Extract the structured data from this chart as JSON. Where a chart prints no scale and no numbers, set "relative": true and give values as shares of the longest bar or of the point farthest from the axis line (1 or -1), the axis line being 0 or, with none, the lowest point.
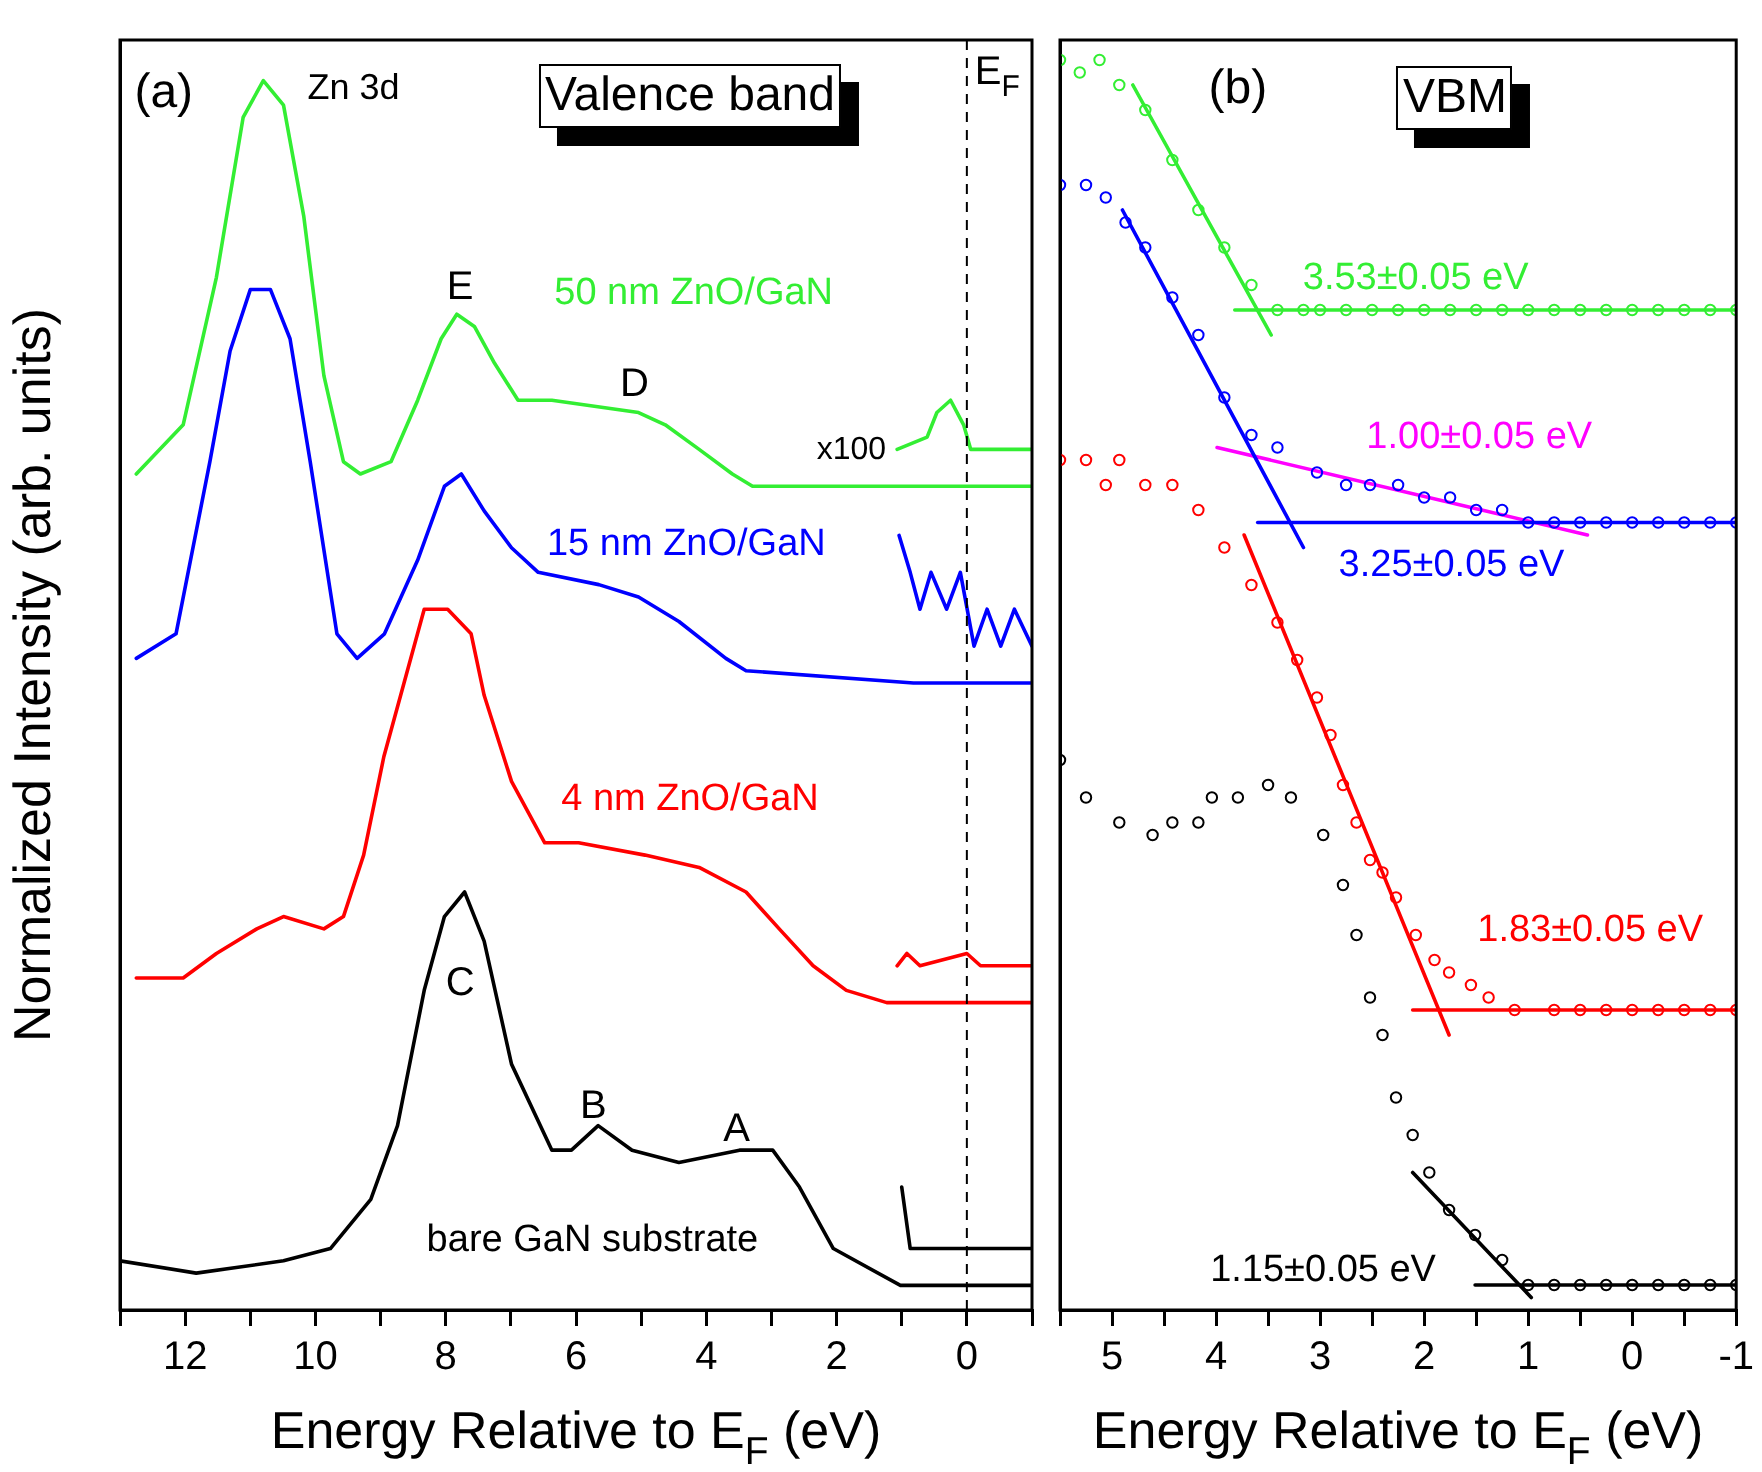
{
  "chart_data": [
    {
      "type": "line",
      "relative": true,
      "xlabel": "Energy Relative to E$_{F}$ (eV)",
      "ylabel": "Normalized Intensity (arb. units)",
      "xlim": [
        13,
        -1
      ],
      "xticks": [
        {
          "value": 13,
          "label": null
        },
        12,
        {
          "value": 11,
          "label": null
        },
        10,
        {
          "value": 9,
          "label": null
        },
        8,
        {
          "value": 7,
          "label": null
        },
        6,
        {
          "value": 5,
          "label": null
        },
        4,
        {
          "value": 3,
          "label": null
        },
        2,
        {
          "value": 1,
          "label": null
        },
        0,
        {
          "value": -1,
          "label": null
        }
      ],
      "ref_lines": [
        {
          "axis": "x",
          "value": 0,
          "label": "E$_{F}$",
          "line_style": "dashed"
        }
      ],
      "annotations": [
        "(a)",
        "Valence band",
        "Zn 3d",
        "E",
        "D",
        "C",
        "B",
        "A",
        "x100"
      ],
      "series": [
        {
          "name": "50 nm ZnO/GaN",
          "color": "#33ee33",
          "x": [
            12.75,
            12.03,
            11.52,
            11.11,
            10.8,
            10.49,
            10.18,
            9.87,
            9.57,
            9.31,
            8.84,
            8.43,
            8.07,
            7.83,
            7.56,
            7.25,
            6.89,
            6.37,
            5.04,
            4.63,
            4.11,
            3.6,
            3.29,
            -1
          ],
          "values": [
            0.68,
            0.72,
            0.84,
            0.97,
            1,
            0.98,
            0.89,
            0.76,
            0.69,
            0.68,
            0.69,
            0.74,
            0.79,
            0.81,
            0.8,
            0.77,
            0.74,
            0.74,
            0.73,
            0.72,
            0.7,
            0.68,
            0.67,
            0.67
          ]
        },
        {
          "color": "#33ee33",
          "x": [
            1.07,
            0.61,
            0.46,
            0.25,
            0.05,
            -0.06,
            -0.42,
            -1
          ],
          "values": [
            0.7,
            0.71,
            0.73,
            0.74,
            0.72,
            0.7,
            0.7,
            0.7
          ]
        },
        {
          "name": "15 nm ZnO/GaN",
          "color": "#0000ff",
          "x": [
            12.75,
            12.14,
            11.62,
            11.31,
            11,
            10.69,
            10.39,
            10.08,
            9.67,
            9.36,
            8.94,
            8.43,
            8.02,
            7.76,
            7.41,
            6.99,
            6.58,
            5.65,
            5.04,
            4.42,
            3.7,
            3.39,
            0.82,
            -1
          ],
          "values": [
            0.53,
            0.55,
            0.69,
            0.78,
            0.83,
            0.83,
            0.79,
            0.69,
            0.55,
            0.53,
            0.55,
            0.61,
            0.67,
            0.68,
            0.65,
            0.62,
            0.6,
            0.59,
            0.58,
            0.56,
            0.53,
            0.52,
            0.51,
            0.51
          ]
        },
        {
          "color": "#0000ff",
          "x": [
            1.04,
            0.87,
            0.72,
            0.55,
            0.31,
            0.1,
            -0.11,
            -0.31,
            -0.52,
            -0.73,
            -1
          ],
          "values": [
            0.63,
            0.6,
            0.57,
            0.6,
            0.57,
            0.6,
            0.54,
            0.57,
            0.54,
            0.57,
            0.54
          ]
        },
        {
          "name": "4 nm ZnO/GaN",
          "color": "#ff0000",
          "x": [
            12.75,
            12.03,
            11.52,
            10.9,
            10.49,
            9.87,
            9.57,
            9.26,
            8.95,
            8.64,
            8.33,
            7.97,
            7.61,
            7.41,
            6.99,
            6.48,
            5.96,
            4.94,
            4.11,
            3.39,
            2.88,
            2.36,
            1.85,
            1.23,
            -1
          ],
          "values": [
            0.27,
            0.27,
            0.29,
            0.31,
            0.32,
            0.31,
            0.32,
            0.37,
            0.45,
            0.51,
            0.57,
            0.57,
            0.55,
            0.5,
            0.43,
            0.38,
            0.38,
            0.37,
            0.36,
            0.34,
            0.31,
            0.28,
            0.26,
            0.25,
            0.25
          ]
        },
        {
          "color": "#ff0000",
          "x": [
            1.07,
            0.92,
            0.72,
            0,
            -0.21,
            -0.62,
            -1
          ],
          "values": [
            0.28,
            0.29,
            0.28,
            0.29,
            0.28,
            0.28,
            0.28
          ]
        },
        {
          "name": "bare GaN substrate",
          "color": "#000000",
          "x": [
            13,
            11.83,
            10.49,
            9.77,
            9.15,
            8.74,
            8.33,
            8.02,
            7.71,
            7.41,
            6.99,
            6.37,
            6.07,
            5.66,
            5.14,
            4.42,
            3.49,
            2.98,
            2.57,
            2.05,
            1.02,
            -1
          ],
          "values": [
            0.04,
            0.03,
            0.04,
            0.05,
            0.09,
            0.15,
            0.26,
            0.32,
            0.34,
            0.3,
            0.2,
            0.13,
            0.13,
            0.15,
            0.13,
            0.12,
            0.13,
            0.13,
            0.1,
            0.05,
            0.02,
            0.02
          ]
        },
        {
          "color": "#000000",
          "x": [
            1,
            0.87,
            0.72,
            0,
            -1
          ],
          "values": [
            0.1,
            0.05,
            0.05,
            0.05,
            0.05
          ]
        }
      ]
    },
    {
      "type": "scatter",
      "relative": true,
      "xlabel": "Energy Relative to E$_{F}$ (eV)",
      "xlim": [
        5.5,
        -1
      ],
      "xticks": [
        {
          "value": 5.5,
          "label": null
        },
        5,
        {
          "value": 4.5,
          "label": null
        },
        4,
        {
          "value": 3.5,
          "label": null
        },
        3,
        {
          "value": 2.5,
          "label": null
        },
        2,
        {
          "value": 1.5,
          "label": null
        },
        1,
        {
          "value": 0.5,
          "label": null
        },
        0,
        {
          "value": -0.5,
          "label": null
        },
        -1
      ],
      "annotations": [
        "(b)",
        "VBM"
      ],
      "series": [
        {
          "marker": "circle",
          "color": "#33ee33",
          "x": [
            5.5,
            5.31,
            5.12,
            4.93,
            4.68,
            4.42,
            4.17,
            3.92,
            3.66,
            3.41,
            3.16,
            3,
            2.75,
            2.5,
            2.25,
            2,
            1.75,
            1.5,
            1.25,
            1,
            0.75,
            0.5,
            0.25,
            0,
            -0.25,
            -0.5,
            -0.75,
            -1
          ],
          "values": [
            1,
            0.99,
            1,
            0.98,
            0.96,
            0.92,
            0.88,
            0.85,
            0.82,
            0.8,
            0.8,
            0.8,
            0.8,
            0.8,
            0.8,
            0.8,
            0.8,
            0.8,
            0.8,
            0.8,
            0.8,
            0.8,
            0.8,
            0.8,
            0.8,
            0.8,
            0.8,
            0.8
          ]
        },
        {
          "type": "line",
          "color": "#33ee33",
          "x": [
            4.8,
            3.47
          ],
          "values": [
            0.98,
            0.78
          ]
        },
        {
          "type": "line",
          "name": "3.53±0.05 eV",
          "color": "#33ee33",
          "x": [
            3.82,
            -1
          ],
          "values": [
            0.8,
            0.8
          ]
        },
        {
          "marker": "circle",
          "color": "#0000ff",
          "x": [
            5.5,
            5.25,
            5.06,
            4.87,
            4.68,
            4.42,
            4.17,
            3.92,
            3.66,
            3.41,
            3.03,
            2.75,
            2.52,
            2.25,
            2,
            1.75,
            1.5,
            1.25,
            1,
            0.75,
            0.5,
            0.25,
            0,
            -0.25,
            -0.5,
            -0.75,
            -1
          ],
          "values": [
            0.9,
            0.9,
            0.89,
            0.87,
            0.85,
            0.81,
            0.78,
            0.73,
            0.7,
            0.69,
            0.67,
            0.66,
            0.66,
            0.66,
            0.65,
            0.65,
            0.64,
            0.64,
            0.63,
            0.63,
            0.63,
            0.63,
            0.63,
            0.63,
            0.63,
            0.63,
            0.63
          ]
        },
        {
          "type": "line",
          "color": "#0000ff",
          "x": [
            4.9,
            3.16
          ],
          "values": [
            0.88,
            0.61
          ]
        },
        {
          "type": "line",
          "name": "3.25±0.05 eV",
          "color": "#0000ff",
          "x": [
            3.6,
            -1
          ],
          "values": [
            0.63,
            0.63
          ]
        },
        {
          "type": "line",
          "name": "1.00±0.05 eV",
          "color": "#ff00ff",
          "x": [
            3.99,
            0.43
          ],
          "values": [
            0.69,
            0.62
          ]
        },
        {
          "marker": "circle",
          "color": "#ff0000",
          "x": [
            5.5,
            5.25,
            5.06,
            4.93,
            4.68,
            4.42,
            4.17,
            3.92,
            3.66,
            3.41,
            3.22,
            3.03,
            2.9,
            2.78,
            2.65,
            2.52,
            2.4,
            2.27,
            2.08,
            1.9,
            1.76,
            1.55,
            1.38,
            1.13,
            0.75,
            0.5,
            0.25,
            0,
            -0.25,
            -0.5,
            -0.75,
            -1
          ],
          "values": [
            0.68,
            0.68,
            0.66,
            0.68,
            0.66,
            0.66,
            0.64,
            0.61,
            0.58,
            0.55,
            0.52,
            0.49,
            0.46,
            0.42,
            0.39,
            0.36,
            0.35,
            0.33,
            0.3,
            0.28,
            0.27,
            0.26,
            0.25,
            0.24,
            0.24,
            0.24,
            0.24,
            0.24,
            0.24,
            0.24,
            0.24,
            0.24
          ]
        },
        {
          "type": "line",
          "color": "#ff0000",
          "x": [
            3.73,
            1.76
          ],
          "values": [
            0.62,
            0.22
          ]
        },
        {
          "type": "line",
          "name": "1.83±0.05 eV",
          "color": "#ff0000",
          "x": [
            2.11,
            -1
          ],
          "values": [
            0.24,
            0.24
          ]
        },
        {
          "marker": "circle",
          "color": "#000000",
          "x": [
            5.5,
            5.25,
            4.93,
            4.61,
            4.42,
            4.17,
            4.04,
            3.79,
            3.5,
            3.28,
            2.97,
            2.78,
            2.65,
            2.52,
            2.4,
            2.27,
            2.11,
            1.95,
            1.76,
            1.51,
            1.25,
            1,
            0.75,
            0.5,
            0.25,
            0,
            -0.25,
            -0.5,
            -0.75,
            -1
          ],
          "values": [
            0.44,
            0.41,
            0.39,
            0.38,
            0.39,
            0.39,
            0.41,
            0.41,
            0.42,
            0.41,
            0.38,
            0.34,
            0.3,
            0.25,
            0.22,
            0.17,
            0.14,
            0.11,
            0.08,
            0.06,
            0.04,
            0.02,
            0.02,
            0.02,
            0.02,
            0.02,
            0.02,
            0.02,
            0.02,
            0.02
          ]
        },
        {
          "type": "line",
          "color": "#000000",
          "x": [
            2.11,
            0.97
          ],
          "values": [
            0.11,
            0.01
          ]
        },
        {
          "type": "line",
          "name": "1.15±0.05 eV",
          "color": "#000000",
          "x": [
            1.51,
            -1
          ],
          "values": [
            0.02,
            0.02
          ]
        }
      ]
    }
  ]
}
